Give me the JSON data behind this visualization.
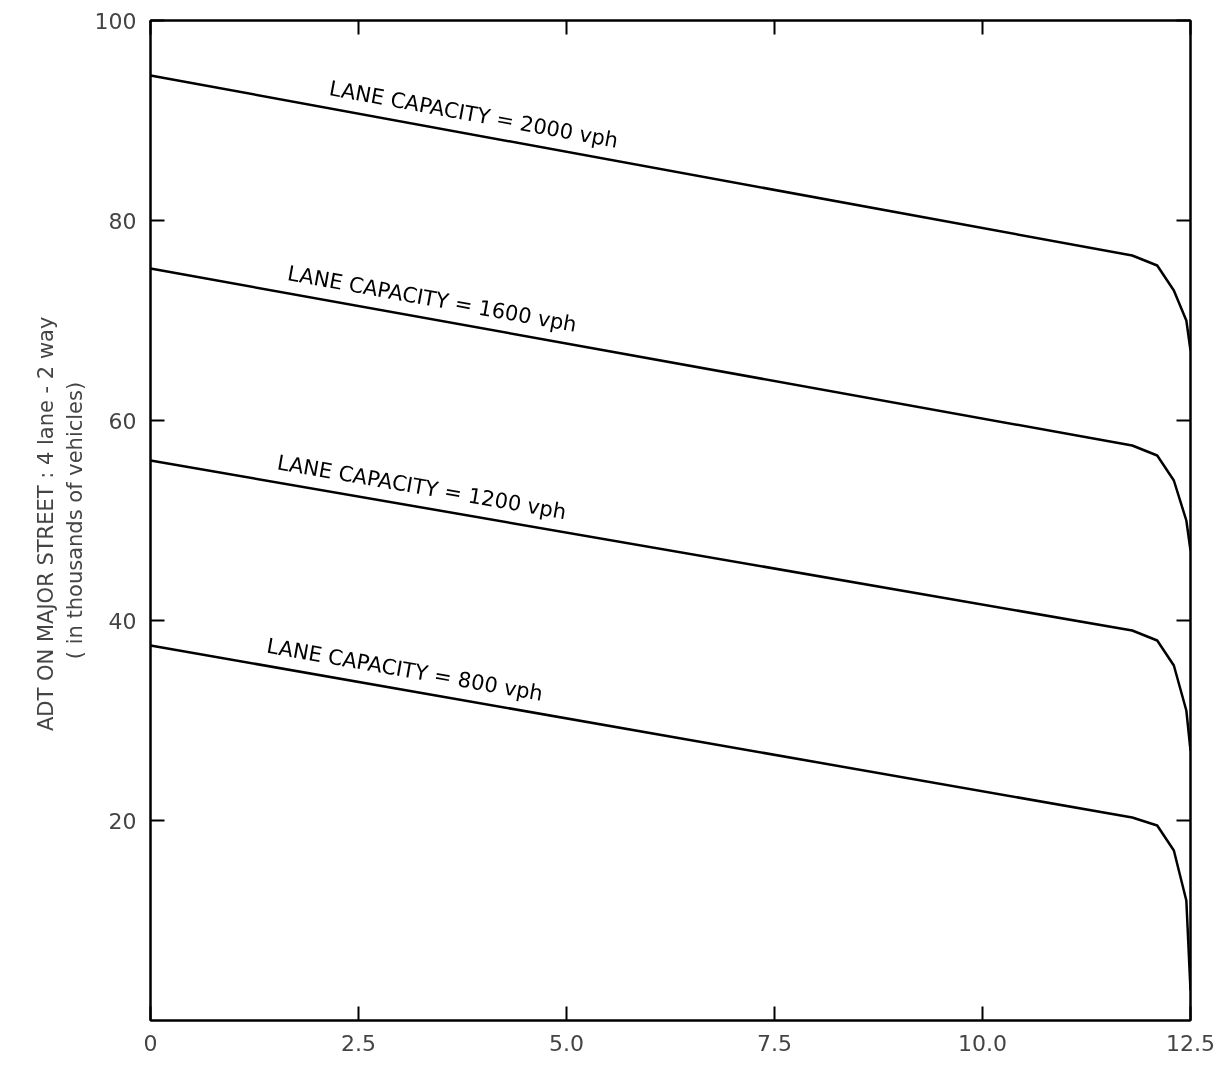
{
  "chart_data": {
    "type": "line",
    "ylabel": "ADT ON MAJOR STREET :  4 lane - 2 way\n( in thousands of vehicles)",
    "xlim": [
      0,
      12.5
    ],
    "ylim": [
      0,
      100
    ],
    "xticks": [
      0,
      {
        "value": 2.5,
        "label": "2.5"
      },
      {
        "value": 5,
        "label": "5.0"
      },
      {
        "value": 7.5,
        "label": "7.5"
      },
      {
        "value": 10,
        "label": "10.0"
      },
      {
        "value": 12.5,
        "label": "12.5"
      }
    ],
    "yticks": [
      20,
      40,
      60,
      80,
      100
    ],
    "grid": false,
    "legend": false,
    "marker": "none",
    "line_style": "solid",
    "series": [
      {
        "name": "LANE  CAPACITY  =  2000  vph",
        "color": "#000000",
        "x": [
          0,
          11.8,
          12.1,
          12.3,
          12.45,
          12.5
        ],
        "values": [
          94.5,
          76.5,
          75.5,
          73,
          70,
          67
        ]
      },
      {
        "name": "LANE  CAPACITY  =  1600  vph",
        "color": "#000000",
        "x": [
          0,
          11.8,
          12.1,
          12.3,
          12.45,
          12.5
        ],
        "values": [
          75.2,
          57.5,
          56.5,
          54,
          50,
          47
        ]
      },
      {
        "name": "LANE  CAPACITY  =  1200  vph",
        "color": "#000000",
        "x": [
          0,
          11.8,
          12.1,
          12.3,
          12.45,
          12.5
        ],
        "values": [
          56,
          39,
          38,
          35.5,
          31,
          27
        ]
      },
      {
        "name": "LANE  CAPACITY  =  800  vph",
        "color": "#000000",
        "x": [
          0,
          11.8,
          12.1,
          12.3,
          12.45,
          12.5
        ],
        "values": [
          37.5,
          20.3,
          19.5,
          17,
          12,
          3
        ]
      }
    ]
  }
}
